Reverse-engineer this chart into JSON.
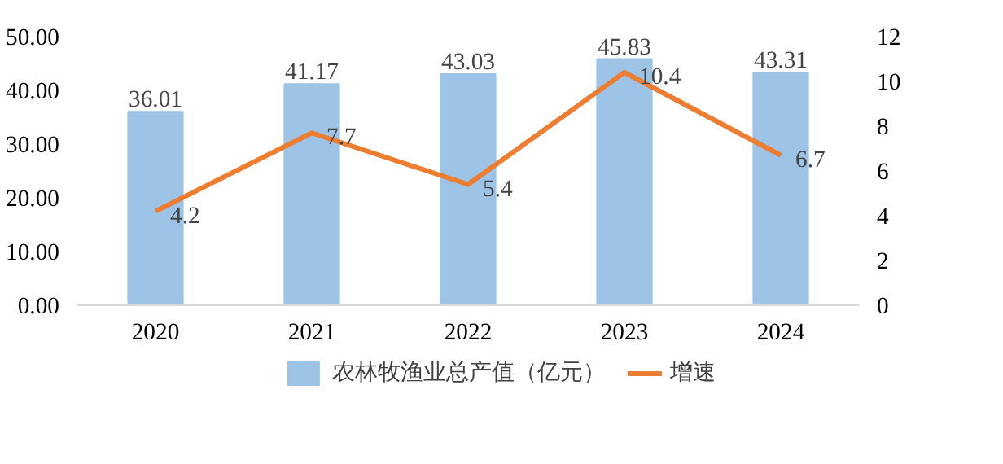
{
  "chart_data": {
    "type": "bar",
    "categories": [
      "2020",
      "2021",
      "2022",
      "2023",
      "2024"
    ],
    "series": [
      {
        "name": "农林牧渔业总产值（亿元）",
        "type": "bar",
        "color": "#9dc3e6",
        "values": [
          36.01,
          41.17,
          43.03,
          45.83,
          43.31
        ]
      },
      {
        "name": "增速",
        "type": "line",
        "axis": "y2",
        "color": "#ed7d31",
        "values": [
          4.2,
          7.7,
          5.4,
          10.4,
          6.7
        ]
      }
    ],
    "ylim": [
      0,
      50
    ],
    "yticks": [
      {
        "value": 0,
        "label": "0.00"
      },
      {
        "value": 10,
        "label": "10.00"
      },
      {
        "value": 20,
        "label": "20.00"
      },
      {
        "value": 30,
        "label": "30.00"
      },
      {
        "value": 40,
        "label": "40.00"
      },
      {
        "value": 50,
        "label": "50.00"
      }
    ],
    "y2lim": [
      0,
      12
    ],
    "y2ticks": [
      0,
      2,
      4,
      6,
      8,
      10,
      12
    ],
    "data_labels": true,
    "legend": "bottom",
    "grid": false
  }
}
